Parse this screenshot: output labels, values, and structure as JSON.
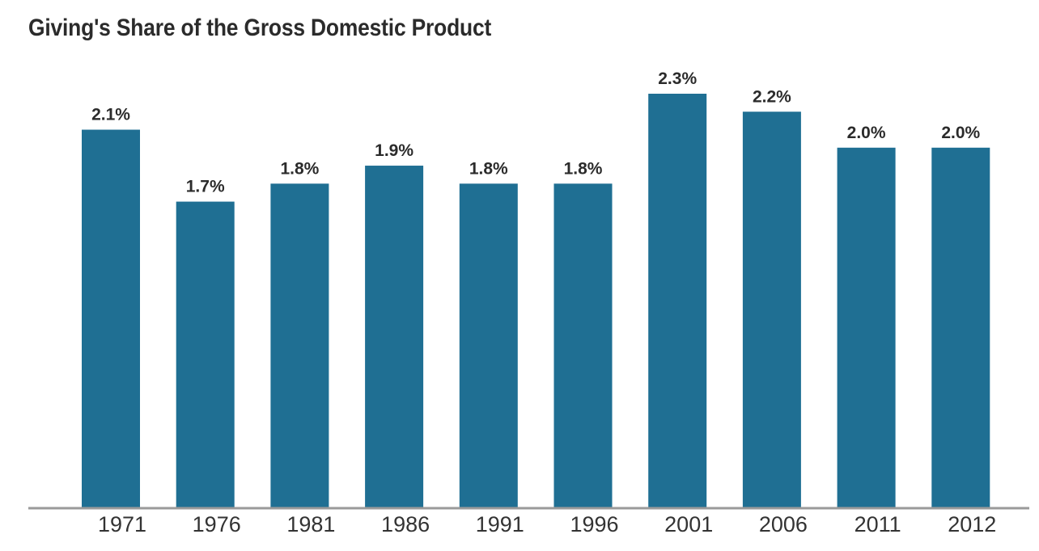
{
  "chart_data": {
    "type": "bar",
    "title": "Giving's Share of the Gross Domestic Product",
    "categories": [
      "1971",
      "1976",
      "1981",
      "1986",
      "1991",
      "1996",
      "2001",
      "2006",
      "2011",
      "2012"
    ],
    "values": [
      2.1,
      1.7,
      1.8,
      1.9,
      1.8,
      1.8,
      2.3,
      2.2,
      2.0,
      2.0
    ],
    "data_labels": [
      "2.1%",
      "1.7%",
      "1.8%",
      "1.9%",
      "1.8%",
      "1.8%",
      "2.3%",
      "2.2%",
      "2.0%",
      "2.0%"
    ],
    "xlabel": "",
    "ylabel": "",
    "ylim": [
      0,
      2.3
    ],
    "grid": false,
    "bar_color": "#1f6f93",
    "axis_color": "#9a9a9a"
  }
}
